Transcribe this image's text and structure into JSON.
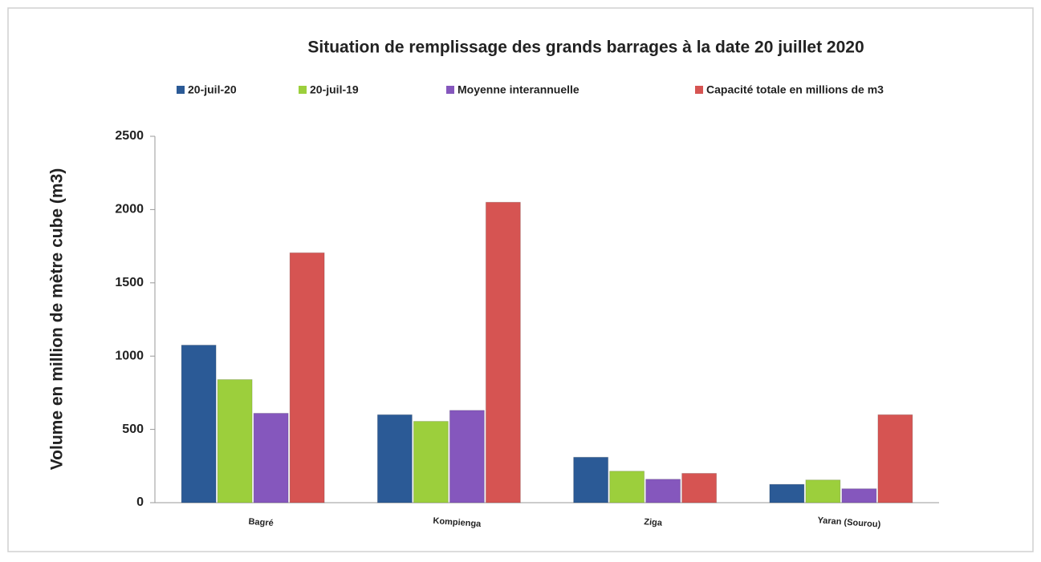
{
  "chart_data": {
    "type": "bar",
    "title": "Situation de remplissage des grands barrages à la date  20 juillet 2020",
    "y_label": "Volume en million de mètre cube (m3)",
    "categories": [
      "Bagré",
      "Kompienga",
      "Ziga",
      "Yaran (Sourou)"
    ],
    "series": [
      {
        "name": "20-juil-20",
        "color": "#2b5a96",
        "values": [
          1075,
          600,
          310,
          125
        ]
      },
      {
        "name": "20-juil-19",
        "color": "#9ccf3c",
        "values": [
          840,
          555,
          215,
          155
        ]
      },
      {
        "name": "Moyenne interannuelle",
        "color": "#8557bd",
        "values": [
          610,
          630,
          160,
          95
        ]
      },
      {
        "name": "Capacité totale en millions de m3",
        "color": "#d65452",
        "values": [
          1705,
          2050,
          200,
          600
        ]
      }
    ],
    "ylim": [
      0,
      2500
    ],
    "yticks": [
      0,
      500,
      1000,
      1500,
      2000,
      2500
    ],
    "grid": false,
    "legend": "top"
  }
}
